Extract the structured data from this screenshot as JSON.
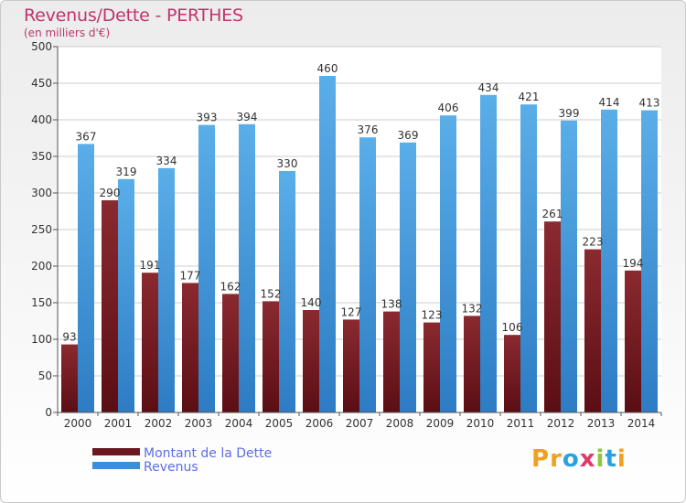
{
  "title": "Revenus/Dette - PERTHES",
  "subtitle": "(en milliers d'€)",
  "logo": {
    "letters": [
      "P",
      "r",
      "o",
      "x",
      "i",
      "t",
      "i"
    ],
    "colors": [
      "#f0a020",
      "#f0a020",
      "#2aa0e0",
      "#e03a6a",
      "#8cc63f",
      "#2aa0e0",
      "#f0a020"
    ]
  },
  "colors": {
    "dette": "#6b1820",
    "revenus": "#3b8fd6"
  },
  "chart_data": {
    "type": "bar",
    "categories": [
      "2000",
      "2001",
      "2002",
      "2003",
      "2004",
      "2005",
      "2006",
      "2007",
      "2008",
      "2009",
      "2010",
      "2011",
      "2012",
      "2013",
      "2014"
    ],
    "series": [
      {
        "name": "Montant de la Dette",
        "values": [
          93,
          290,
          191,
          177,
          162,
          152,
          140,
          127,
          138,
          123,
          132,
          106,
          261,
          223,
          194
        ]
      },
      {
        "name": "Revenus",
        "values": [
          367,
          319,
          334,
          393,
          394,
          330,
          460,
          376,
          369,
          406,
          434,
          421,
          399,
          414,
          413
        ]
      }
    ],
    "ylim": [
      0,
      500
    ],
    "yticks": [
      0,
      50,
      100,
      150,
      200,
      250,
      300,
      350,
      400,
      450,
      500
    ],
    "grid": true,
    "legend": "bottom-left"
  }
}
